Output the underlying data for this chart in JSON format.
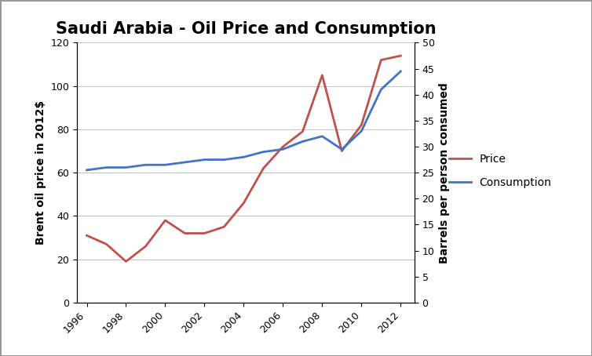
{
  "title": "Saudi Arabia - Oil Price and Consumption",
  "years": [
    1996,
    1997,
    1998,
    1999,
    2000,
    2001,
    2002,
    2003,
    2004,
    2005,
    2006,
    2007,
    2008,
    2009,
    2010,
    2011,
    2012
  ],
  "price": [
    31,
    27,
    19,
    26,
    38,
    32,
    32,
    35,
    46,
    62,
    72,
    79,
    105,
    70,
    82,
    112,
    114
  ],
  "consumption": [
    25.5,
    26.0,
    26.0,
    26.5,
    26.5,
    27.0,
    27.5,
    27.5,
    28.0,
    29.0,
    29.5,
    31.0,
    32.0,
    29.5,
    33.0,
    41.0,
    44.5
  ],
  "price_color": "#c0504d",
  "consumption_color": "#4472c4",
  "ylabel_left": "Brent oil price in 2012$",
  "ylabel_right": "Barrels per person consumed",
  "ylim_left": [
    0,
    120
  ],
  "ylim_right": [
    0,
    50
  ],
  "yticks_left": [
    0,
    20,
    40,
    60,
    80,
    100,
    120
  ],
  "yticks_right": [
    0,
    5,
    10,
    15,
    20,
    25,
    30,
    35,
    40,
    45,
    50
  ],
  "xticks": [
    1996,
    1998,
    2000,
    2002,
    2004,
    2006,
    2008,
    2010,
    2012
  ],
  "xlim": [
    1995.5,
    2012.7
  ],
  "legend_price": "Price",
  "legend_consumption": "Consumption",
  "bg_color": "#ffffff",
  "line_width": 2.0,
  "title_fontsize": 15,
  "label_fontsize": 10,
  "tick_fontsize": 9,
  "border_color": "#999999"
}
